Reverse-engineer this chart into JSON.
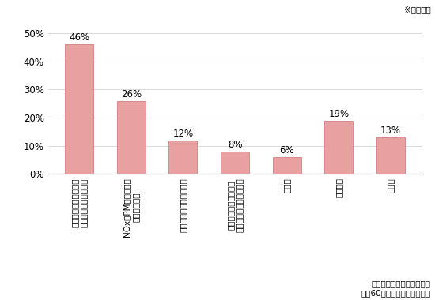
{
  "categories": [
    "輸送効率を向上させ、\nのべ走行台数を減らす",
    "NOx・PM法適合車の\n利用を増やす",
    "低公害車の利用を増やす",
    "環境問題の生じている\n一般道路の利用をやめる",
    "その他",
    "特になし",
    "無回答"
  ],
  "values": [
    46,
    26,
    12,
    8,
    6,
    19,
    13
  ],
  "labels": [
    "46%",
    "26%",
    "12%",
    "8%",
    "6%",
    "19%",
    "13%"
  ],
  "bar_color": "#e8a0a0",
  "bar_edge_color": "#c87070",
  "ylim": [
    0,
    50
  ],
  "yticks": [
    0,
    10,
    20,
    30,
    40,
    50
  ],
  "ytick_labels": [
    "0%",
    "10%",
    "20%",
    "30%",
    "40%",
    "50%"
  ],
  "note_top_right": "※複数回答",
  "note_bottom_right": "資料：企業アンケート調査\n（約60０社のサンプル集計）",
  "label_fontsize": 7.5,
  "tick_fontsize": 8.5,
  "note_fontsize": 7.5,
  "bar_label_fontsize": 8.5,
  "background_color": "#ffffff"
}
